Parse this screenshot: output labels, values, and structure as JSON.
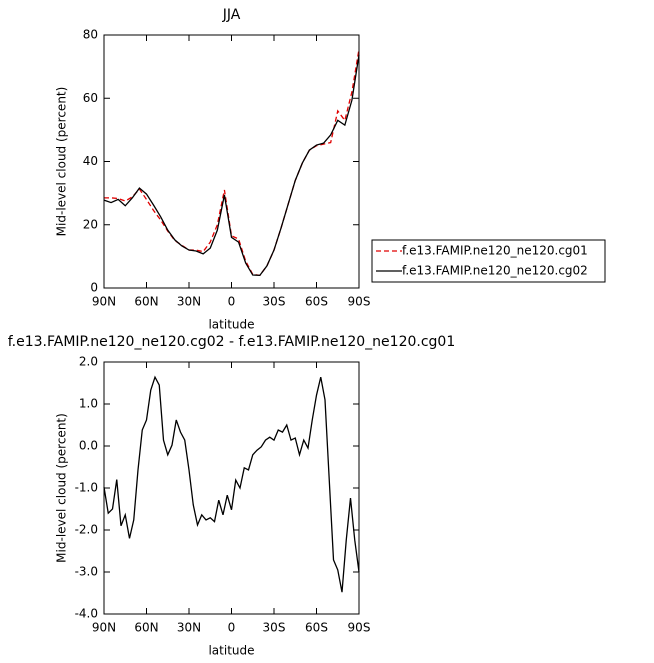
{
  "chart_data": [
    {
      "type": "line",
      "title": "JJA",
      "x_label": "latitude",
      "y_label": "Mid-level cloud (percent)",
      "x": [
        90,
        85,
        80,
        75,
        70,
        65,
        60,
        55,
        50,
        45,
        40,
        35,
        30,
        25,
        20,
        15,
        10,
        5,
        0,
        -5,
        -10,
        -15,
        -20,
        -25,
        -30,
        -35,
        -40,
        -45,
        -50,
        -55,
        -60,
        -65,
        -70,
        -75,
        -80,
        -85,
        -90
      ],
      "series": [
        {
          "name": "f.e13.FAMIP.ne120_ne120.cg01",
          "color": "#e00000",
          "line_style": "dashed",
          "values": [
            28.5,
            28.5,
            28.3,
            27.5,
            28.8,
            31.3,
            28,
            24.5,
            21.5,
            18,
            15,
            13.5,
            12,
            12,
            11.5,
            14.5,
            20,
            31,
            16.5,
            15.5,
            8.5,
            4.3,
            4,
            7,
            12,
            19,
            26.5,
            34,
            39.5,
            43.6,
            45,
            45.5,
            46,
            56,
            53,
            62,
            75.5
          ]
        },
        {
          "name": "f.e13.FAMIP.ne120_ne120.cg02",
          "color": "#000000",
          "line_style": "solid",
          "values": [
            27.8,
            27,
            28,
            26,
            28.5,
            31.6,
            29.7,
            26.2,
            22.5,
            18.3,
            15.2,
            13.3,
            12,
            11.7,
            10.8,
            12.6,
            18.3,
            29.4,
            16,
            14.5,
            7.9,
            4.1,
            4,
            7,
            12,
            19,
            26.5,
            34,
            39.5,
            43.6,
            45.2,
            45.8,
            48.4,
            53,
            51.5,
            59.4,
            73.7
          ]
        }
      ],
      "xlim": [
        90,
        -90
      ],
      "xticks": [
        {
          "value": 90,
          "label": "90N"
        },
        {
          "value": 60,
          "label": "60N"
        },
        {
          "value": 30,
          "label": "30N"
        },
        0,
        {
          "value": -30,
          "label": "30S"
        },
        {
          "value": -60,
          "label": "60S"
        },
        {
          "value": -90,
          "label": "90S"
        }
      ],
      "ylim": [
        0,
        80
      ],
      "yticks": [
        0,
        20,
        40,
        60,
        80
      ],
      "legend": "right"
    },
    {
      "type": "line",
      "title": "f.e13.FAMIP.ne120_ne120.cg02 - f.e13.FAMIP.ne120_ne120.cg01",
      "x_label": "latitude",
      "y_label": "Mid-level cloud (percent)",
      "x": [
        90,
        87,
        84,
        81,
        78,
        75,
        72,
        69,
        66,
        63,
        60,
        57,
        54,
        51,
        48,
        45,
        42,
        39,
        36,
        33,
        30,
        27,
        24,
        21,
        18,
        15,
        12,
        9,
        6,
        3,
        0,
        -3,
        -6,
        -9,
        -12,
        -15,
        -18,
        -21,
        -24,
        -27,
        -30,
        -33,
        -36,
        -39,
        -42,
        -45,
        -48,
        -51,
        -54,
        -57,
        -60,
        -63,
        -66,
        -69,
        -72,
        -75,
        -78,
        -81,
        -84,
        -87,
        -90
      ],
      "series": [
        {
          "color": "#000000",
          "line_style": "solid",
          "values": [
            -0.98,
            -1.6,
            -1.5,
            -0.8,
            -1.9,
            -1.64,
            -2.2,
            -1.76,
            -0.57,
            0.38,
            0.62,
            1.33,
            1.64,
            1.45,
            0.14,
            -0.21,
            0.02,
            0.62,
            0.33,
            0.14,
            -0.57,
            -1.4,
            -1.88,
            -1.64,
            -1.76,
            -1.71,
            -1.8,
            -1.29,
            -1.64,
            -1.17,
            -1.52,
            -0.81,
            -1.0,
            -0.52,
            -0.57,
            -0.21,
            -0.1,
            -0.02,
            0.14,
            0.21,
            0.14,
            0.38,
            0.33,
            0.5,
            0.14,
            0.19,
            -0.21,
            0.14,
            -0.05,
            0.62,
            1.21,
            1.64,
            1.1,
            -0.81,
            -2.71,
            -2.95,
            -3.48,
            -2.24,
            -1.24,
            -2.24,
            -3.0
          ]
        }
      ],
      "xlim": [
        90,
        -90
      ],
      "xticks": [
        {
          "value": 90,
          "label": "90N"
        },
        {
          "value": 60,
          "label": "60N"
        },
        {
          "value": 30,
          "label": "30N"
        },
        0,
        {
          "value": -30,
          "label": "30S"
        },
        {
          "value": -60,
          "label": "60S"
        },
        {
          "value": -90,
          "label": "90S"
        }
      ],
      "ylim": [
        -4,
        2
      ],
      "yticks": [
        {
          "value": -4,
          "label": "-4.0"
        },
        {
          "value": -3,
          "label": "-3.0"
        },
        {
          "value": -2,
          "label": "-2.0"
        },
        {
          "value": -1,
          "label": "-1.0"
        },
        {
          "value": 0,
          "label": "0.0"
        },
        {
          "value": 1,
          "label": "1.0"
        },
        {
          "value": 2,
          "label": "2.0"
        }
      ]
    }
  ]
}
